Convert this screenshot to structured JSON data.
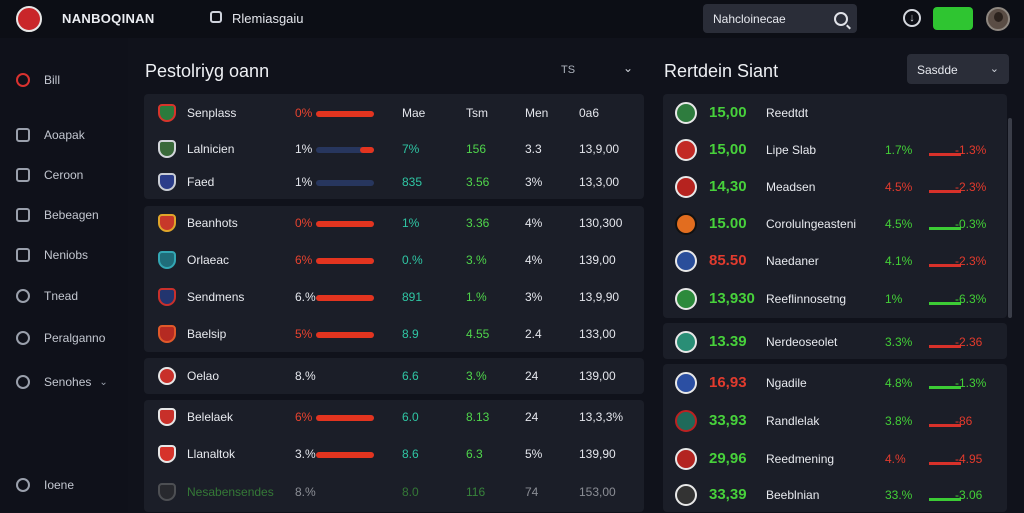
{
  "header": {
    "brand": "NANBOQINAN",
    "nav_text": "Rlemiasgaiu",
    "search_text": "Nahcloinecae"
  },
  "sidebar": {
    "items": [
      {
        "label": "Bill"
      },
      {
        "label": "Aoapak"
      },
      {
        "label": "Ceroon"
      },
      {
        "label": "Bebeagen"
      },
      {
        "label": "Neniobs"
      },
      {
        "label": "Tnead"
      },
      {
        "label": "Peralganno"
      },
      {
        "label": "Senohes"
      },
      {
        "label": "Ioene"
      }
    ]
  },
  "left": {
    "title": "Pestolriyg oann",
    "filter": "TS",
    "header_row": {
      "name": "Senplass",
      "pct": "0%",
      "bar": 1.0,
      "c1": "Mae",
      "c2": "Tsm",
      "c3": "Men",
      "c4": "0a6"
    },
    "groups": [
      [
        {
          "name": "Lalnicien",
          "pct": "1%",
          "bar": 0.25,
          "c1": "7%",
          "c2": "156",
          "c3": "3.3",
          "c4": "13,9,00"
        },
        {
          "name": "Faed",
          "pct": "1%",
          "bar": 0.0,
          "c1": "835",
          "c2": "3.56",
          "c3": "3%",
          "c4": "13,3,00"
        }
      ],
      [
        {
          "name": "Beanhots",
          "pct": "0%",
          "bar": 1.0,
          "c1": "1%",
          "c2": "3.36",
          "c3": "4%",
          "c4": "130,300"
        },
        {
          "name": "Orlaeac",
          "pct": "6%",
          "bar": 1.0,
          "c1": "0.%",
          "c2": "3.%",
          "c3": "4%",
          "c4": "139,00"
        },
        {
          "name": "Sendmens",
          "pct": "6.%",
          "bar": 1.0,
          "c1": "891",
          "c2": "1.%",
          "c3": "3%",
          "c4": "13,9,90"
        },
        {
          "name": "Baelsip",
          "pct": "5%",
          "bar": 1.0,
          "c1": "8.9",
          "c2": "4.55",
          "c3": "2.4",
          "c4": "133,00"
        }
      ],
      [
        {
          "name": "Oelao",
          "pct": "8.%",
          "c1": "6.6",
          "c2": "3.%",
          "c3": "24",
          "c4": "139,00"
        }
      ],
      [
        {
          "name": "Belelaek",
          "pct": "6%",
          "bar": 1.0,
          "c1": "6.0",
          "c2": "8.13",
          "c3": "24",
          "c4": "13,3,3%"
        },
        {
          "name": "Llanaltok",
          "pct": "3.%",
          "bar": 1.0,
          "c1": "8.6",
          "c2": "6.3",
          "c3": "5%",
          "c4": "139,90"
        },
        {
          "name": "Nesabensendes",
          "pct": "8.%",
          "c1": "8.0",
          "c2": "116",
          "c3": "74",
          "c4": "153,00"
        }
      ]
    ]
  },
  "right": {
    "title": "Rertdein Siant",
    "select_label": "Sasdde",
    "groups": [
      [
        {
          "score": "15,00",
          "name": "Reedtdt",
          "ch": "",
          "ch2": "",
          "color": "green"
        },
        {
          "score": "15,00",
          "name": "Lipe Slab",
          "ch": "1.7%",
          "ch2": "-1.3%",
          "color": "green"
        },
        {
          "score": "14,30",
          "name": "Meadsen",
          "ch": "4.5%",
          "ch2": "-2.3%",
          "color": "green"
        },
        {
          "score": "15.00",
          "name": "Corolulngeasteni",
          "ch": "4.5%",
          "ch2": "-0.3%",
          "color": "green",
          "green2": true
        },
        {
          "score": "85.50",
          "name": "Naedaner",
          "ch": "4.1%",
          "ch2": "-2.3%",
          "color": "red"
        },
        {
          "score": "13,930",
          "name": "Reeflinnosetng",
          "ch": "1%",
          "ch2": "-6.3%",
          "color": "green",
          "green2": true
        }
      ],
      [
        {
          "score": "13.39",
          "name": "Nerdeoseolet",
          "ch": "3.3%",
          "ch2": "-2.36",
          "color": "green"
        }
      ],
      [
        {
          "score": "16,93",
          "name": "Ngadile",
          "ch": "4.8%",
          "ch2": "-1.3%",
          "color": "red",
          "green2": true
        },
        {
          "score": "33,93",
          "name": "Randlelak",
          "ch": "3.8%",
          "ch2": "-86",
          "color": "green"
        },
        {
          "score": "29,96",
          "name": "Reedmening",
          "ch": "4.%",
          "ch2": "-4.95",
          "color": "green"
        },
        {
          "score": "33,39",
          "name": "Beeblnian",
          "ch": "33.%",
          "ch2": "-3.06",
          "color": "green",
          "green2": true
        }
      ]
    ]
  },
  "colors": {
    "accent_green": "#2fc531",
    "accent_red": "#e3341f",
    "panel": "#1b1e28",
    "background": "#10121b"
  }
}
